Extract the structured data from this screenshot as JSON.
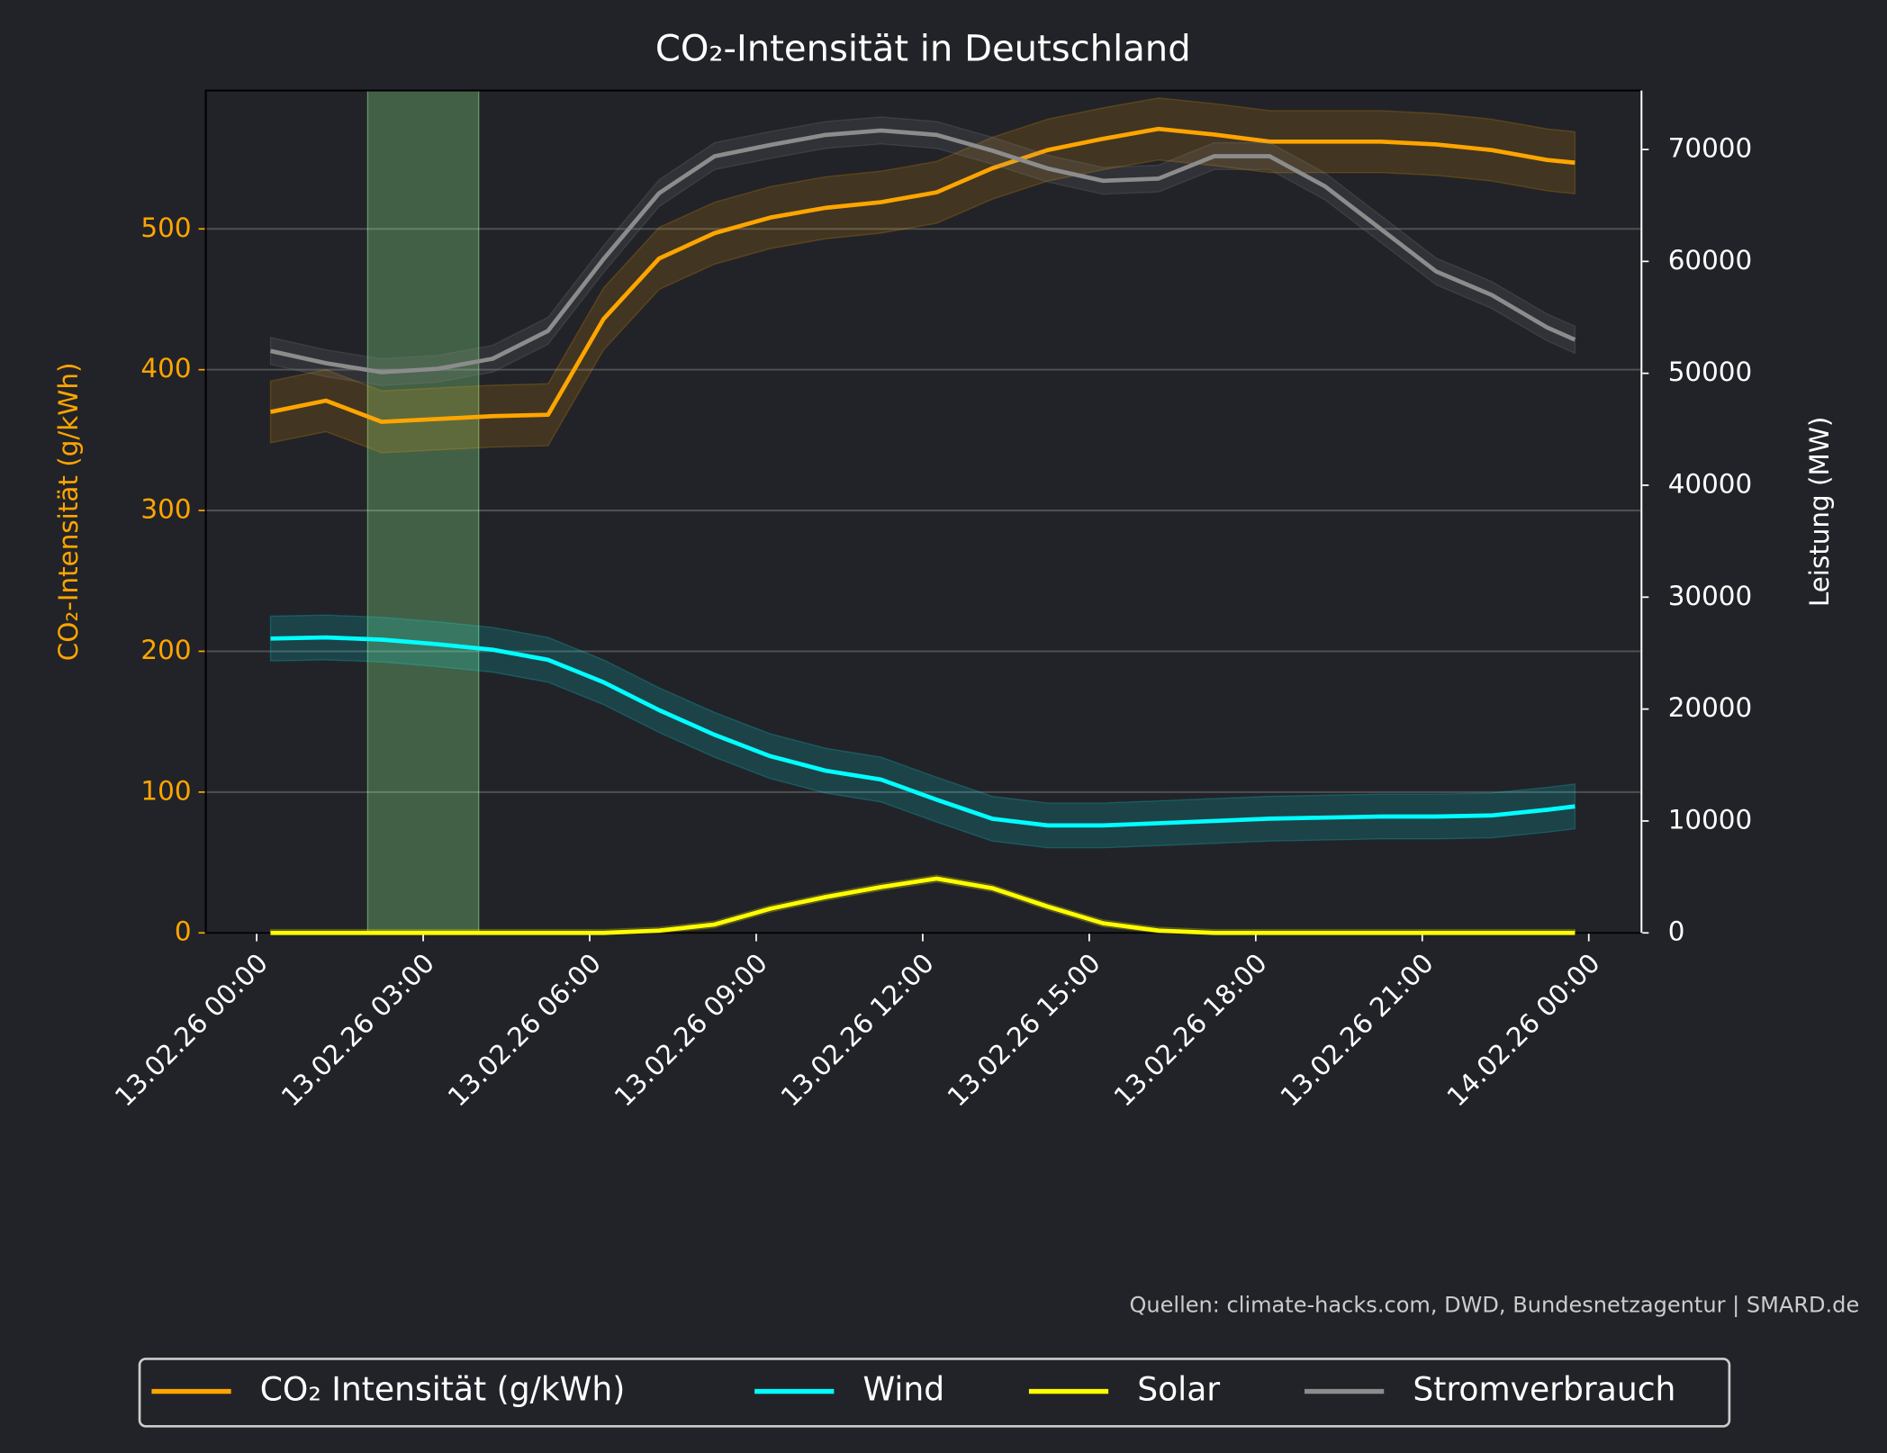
{
  "chart_data": {
    "type": "line",
    "title": "CO₂-Intensität in Deutschland",
    "ylabel": "CO₂-Intensität (g/kWh)",
    "y2label": "Leistung (MW)",
    "source": "Quellen: climate-hacks.com, DWD, Bundesnetzagentur | SMARD.de",
    "x": [
      "13.02.26 00:15",
      "13.02.26 01:15",
      "13.02.26 02:15",
      "13.02.26 03:15",
      "13.02.26 04:15",
      "13.02.26 05:15",
      "13.02.26 06:15",
      "13.02.26 07:15",
      "13.02.26 08:15",
      "13.02.26 09:15",
      "13.02.26 10:15",
      "13.02.26 11:15",
      "13.02.26 12:15",
      "13.02.26 13:15",
      "13.02.26 14:15",
      "13.02.26 15:15",
      "13.02.26 16:15",
      "13.02.26 17:15",
      "13.02.26 18:15",
      "13.02.26 19:15",
      "13.02.26 20:15",
      "13.02.26 21:15",
      "13.02.26 22:15",
      "13.02.26 23:15",
      "13.02.26 23:45"
    ],
    "xlim": [
      "12.02.26 23:05",
      "14.02.26 00:57"
    ],
    "xticks": [
      "13.02.26 00:00",
      "13.02.26 03:00",
      "13.02.26 06:00",
      "13.02.26 09:00",
      "13.02.26 12:00",
      "13.02.26 15:00",
      "13.02.26 18:00",
      "13.02.26 21:00",
      "14.02.26 00:00"
    ],
    "ylim": [
      0,
      598.3
    ],
    "yticks": [
      0,
      100,
      200,
      300,
      400,
      500
    ],
    "y2lim": [
      0,
      75270
    ],
    "y2ticks": [
      0,
      10000,
      20000,
      30000,
      40000,
      50000,
      60000,
      70000
    ],
    "grid": true,
    "legend": "bottom",
    "highlight": [
      "13.02.26 02:00",
      "13.02.26 04:00"
    ],
    "highlight_color": "#90ee90",
    "series": [
      {
        "name": "CO₂ Intensität (g/kWh)",
        "color": "#ffa500",
        "band": 22,
        "values": [
          370,
          378,
          363,
          365,
          367,
          368,
          436,
          479,
          497,
          508,
          515,
          519,
          526,
          543,
          556,
          564,
          571,
          567,
          562,
          562,
          562,
          560,
          556,
          549,
          547
        ]
      },
      {
        "name": "Wind",
        "color": "#00ffff",
        "axis": "y2",
        "band": 2000,
        "values": [
          26300,
          26400,
          26200,
          25800,
          25300,
          24400,
          22400,
          19900,
          17700,
          15800,
          14500,
          13700,
          11900,
          10200,
          9600,
          9600,
          9800,
          10000,
          10200,
          10300,
          10400,
          10400,
          10500,
          11000,
          11300
        ]
      },
      {
        "name": "Solar",
        "color": "#ffff00",
        "axis": "y2",
        "band": 300,
        "values": [
          0,
          0,
          0,
          0,
          0,
          0,
          0,
          200,
          750,
          2150,
          3200,
          4100,
          4850,
          4000,
          2350,
          860,
          200,
          0,
          0,
          0,
          0,
          0,
          0,
          0,
          0
        ]
      },
      {
        "name": "Stromverbrauch",
        "color": "#8c8c8c",
        "axis": "y2",
        "band": 1200,
        "values": [
          52000,
          50900,
          50100,
          50400,
          51300,
          53800,
          60200,
          66100,
          69400,
          70400,
          71300,
          71700,
          71300,
          69900,
          68300,
          67200,
          67400,
          69400,
          69400,
          66700,
          62900,
          59100,
          57000,
          54100,
          53000
        ]
      }
    ]
  }
}
